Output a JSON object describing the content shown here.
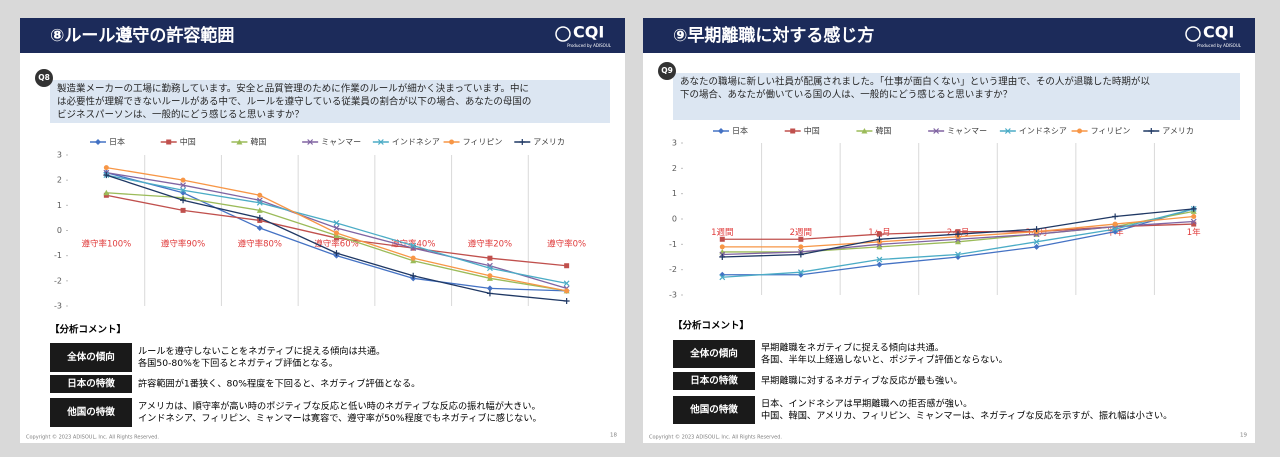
{
  "chart_data": [
    {
      "type": "line",
      "categories": [
        "遵守率100%",
        "遵守率90%",
        "遵守率80%",
        "遵守率60%",
        "遵守率40%",
        "遵守率20%",
        "遵守率0%"
      ],
      "ylim": [
        -3,
        3
      ],
      "yticks": [
        -3,
        -2,
        -1,
        0,
        1,
        2,
        3
      ],
      "grid": true,
      "legend": "top",
      "series": [
        {
          "name": "日本",
          "color": "#4472c4",
          "marker": "diamond",
          "values": [
            2.3,
            1.5,
            0.1,
            -1.0,
            -1.9,
            -2.3,
            -2.4
          ]
        },
        {
          "name": "中国",
          "color": "#c0504d",
          "marker": "square",
          "values": [
            1.4,
            0.8,
            0.4,
            -0.3,
            -0.7,
            -1.1,
            -1.4
          ]
        },
        {
          "name": "韓国",
          "color": "#9bbb59",
          "marker": "triangle",
          "values": [
            1.5,
            1.3,
            0.8,
            -0.2,
            -1.2,
            -1.9,
            -2.4
          ]
        },
        {
          "name": "ミャンマー",
          "color": "#8064a2",
          "marker": "x",
          "values": [
            2.3,
            1.8,
            1.2,
            0.1,
            -0.7,
            -1.4,
            -2.3
          ]
        },
        {
          "name": "インドネシア",
          "color": "#4bacc6",
          "marker": "x",
          "values": [
            2.2,
            1.6,
            1.1,
            0.3,
            -0.6,
            -1.5,
            -2.1
          ]
        },
        {
          "name": "フィリピン",
          "color": "#f79646",
          "marker": "circle",
          "values": [
            2.5,
            2.0,
            1.4,
            -0.1,
            -1.1,
            -1.8,
            -2.4
          ]
        },
        {
          "name": "アメリカ",
          "color": "#1f3864",
          "marker": "plus",
          "values": [
            2.2,
            1.2,
            0.5,
            -0.9,
            -1.8,
            -2.5,
            -2.8
          ]
        }
      ]
    },
    {
      "type": "line",
      "categories": [
        "1週間",
        "2週間",
        "1ヶ月",
        "2ヶ月",
        "3ヶ月",
        "半年",
        "1年"
      ],
      "ylim": [
        -3,
        3
      ],
      "yticks": [
        -3,
        -2,
        -1,
        0,
        1,
        2,
        3
      ],
      "grid": true,
      "legend": "top",
      "series": [
        {
          "name": "日本",
          "color": "#4472c4",
          "marker": "diamond",
          "values": [
            -2.2,
            -2.2,
            -1.8,
            -1.5,
            -1.1,
            -0.5,
            0.4
          ]
        },
        {
          "name": "中国",
          "color": "#c0504d",
          "marker": "square",
          "values": [
            -0.8,
            -0.8,
            -0.6,
            -0.5,
            -0.5,
            -0.3,
            -0.2
          ]
        },
        {
          "name": "韓国",
          "color": "#9bbb59",
          "marker": "triangle",
          "values": [
            -1.3,
            -1.3,
            -1.1,
            -0.9,
            -0.6,
            -0.3,
            0.3
          ]
        },
        {
          "name": "ミャンマー",
          "color": "#8064a2",
          "marker": "x",
          "values": [
            -1.4,
            -1.3,
            -1.0,
            -0.8,
            -0.6,
            -0.3,
            -0.1
          ]
        },
        {
          "name": "インドネシア",
          "color": "#4bacc6",
          "marker": "x",
          "values": [
            -2.3,
            -2.1,
            -1.6,
            -1.4,
            -0.9,
            -0.4,
            0.4
          ]
        },
        {
          "name": "フィリピン",
          "color": "#f79646",
          "marker": "circle",
          "values": [
            -1.1,
            -1.1,
            -0.9,
            -0.7,
            -0.5,
            -0.2,
            0.1
          ]
        },
        {
          "name": "アメリカ",
          "color": "#1f3864",
          "marker": "plus",
          "values": [
            -1.5,
            -1.4,
            -0.8,
            -0.6,
            -0.4,
            0.1,
            0.4
          ]
        }
      ]
    }
  ],
  "slides": [
    {
      "title": "⑧ルール遵守の許容範囲",
      "logo": "CQI",
      "logo_sub": "Produced by ADISOUL",
      "badge": "Q8",
      "question": [
        "製造業メーカーの工場に勤務しています。安全と品質管理のために作業のルールが細かく決まっています。中に",
        "は必要性が理解できないルールがある中で、ルールを遵守している従業員の割合が以下の場合、あなたの母国の",
        "ビジネスパーソンは、一般的にどう感じると思いますか？"
      ],
      "comment_heading": "【分析コメント】",
      "comments": [
        {
          "label": "全体の傾向",
          "lines": [
            "ルールを遵守しないことをネガティブに捉える傾向は共通。",
            "各国50-80%を下回るとネガティブ評価となる。"
          ]
        },
        {
          "label": "日本の特徴",
          "lines": [
            "許容範囲が1番狭く、80%程度を下回ると、ネガティブ評価となる。"
          ]
        },
        {
          "label": "他国の特徴",
          "lines": [
            "アメリカは、順守率が高い時のポジティブな反応と低い時のネガティブな反応の振れ幅が大きい。",
            "インドネシア、フィリピン、ミャンマーは寛容で、遵守率が50%程度でもネガティブに感じない。"
          ]
        }
      ],
      "copyright": "Copyright © 2023 ADISOUL, Inc. All Rights Reserved.",
      "page": "18"
    },
    {
      "title": "⑨早期離職に対する感じ方",
      "logo": "CQI",
      "logo_sub": "Produced by ADISOUL",
      "badge": "Q9",
      "question": [
        "あなたの職場に新しい社員が配属されました。「仕事が面白くない」という理由で、その人が退職した時期が以",
        "下の場合、あなたが働いている国の人は、一般的にどう感じると思いますか？"
      ],
      "comment_heading": "【分析コメント】",
      "comments": [
        {
          "label": "全体の傾向",
          "lines": [
            "早期離職をネガティブに捉える傾向は共通。",
            "各国、半年以上経過しないと、ポジティブ評価とならない。"
          ]
        },
        {
          "label": "日本の特徴",
          "lines": [
            "早期離職に対するネガティブな反応が最も強い。"
          ]
        },
        {
          "label": "他国の特徴",
          "lines": [
            "日本、インドネシアは早期離職への拒否感が強い。",
            "中国、韓国、アメリカ、フィリピン、ミャンマーは、ネガティブな反応を示すが、振れ幅は小さい。"
          ]
        }
      ],
      "copyright": "Copyright © 2023 ADISOUL, Inc. All Rights Reserved.",
      "page": "19"
    }
  ]
}
